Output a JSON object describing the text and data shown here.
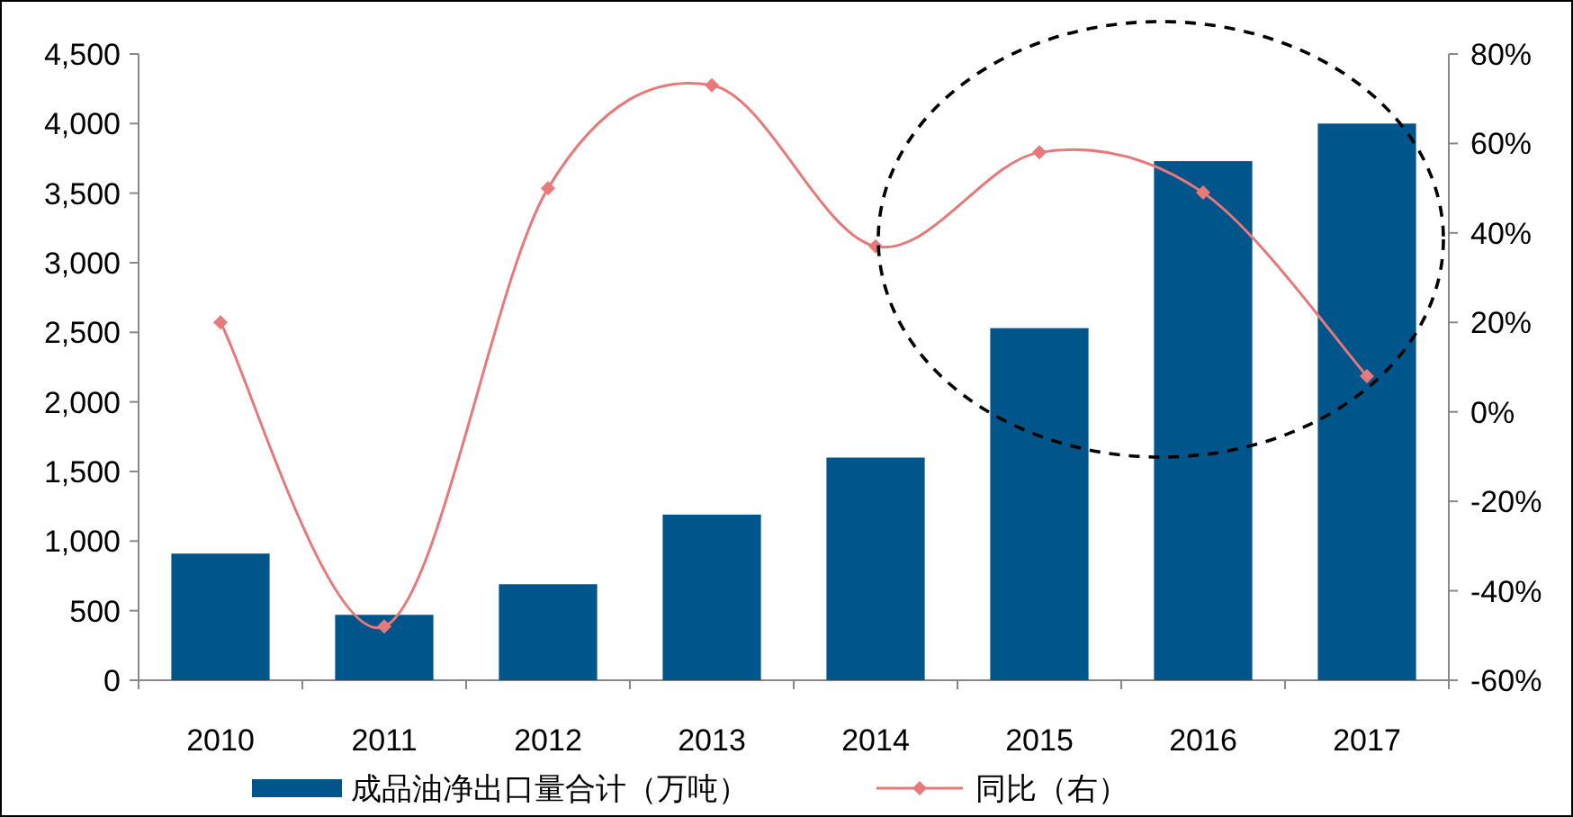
{
  "chart_data": {
    "type": "bar",
    "categories": [
      "2010",
      "2011",
      "2012",
      "2013",
      "2014",
      "2015",
      "2016",
      "2017"
    ],
    "series": [
      {
        "name": "成品油净出口量合计（万吨）",
        "color": "#00558a",
        "values": [
          910,
          470,
          690,
          1190,
          1600,
          2530,
          3730,
          4000
        ]
      },
      {
        "name": "同比（右）",
        "type": "line",
        "axis": "y2",
        "color": "#e8797a",
        "marker": "diamond",
        "values": [
          20,
          -48,
          50,
          73,
          37,
          58,
          49,
          8
        ]
      }
    ],
    "ylim": [
      0,
      4500
    ],
    "yticks": [
      0,
      500,
      {
        "value": 1000,
        "label": "1,000"
      },
      {
        "value": 1500,
        "label": "1,500"
      },
      {
        "value": 2000,
        "label": "2,000"
      },
      {
        "value": 2500,
        "label": "2,500"
      },
      {
        "value": 3000,
        "label": "3,000"
      },
      {
        "value": 3500,
        "label": "3,500"
      },
      {
        "value": 4000,
        "label": "4,000"
      },
      {
        "value": 4500,
        "label": "4,500"
      }
    ],
    "y2lim": [
      -60,
      80
    ],
    "y2ticks": [
      {
        "value": -60,
        "label": "-60%"
      },
      {
        "value": -40,
        "label": "-40%"
      },
      {
        "value": -20,
        "label": "-20%"
      },
      {
        "value": 0,
        "label": "0%"
      },
      {
        "value": 20,
        "label": "20%"
      },
      {
        "value": 40,
        "label": "40%"
      },
      {
        "value": 60,
        "label": "60%"
      },
      {
        "value": 80,
        "label": "80%"
      }
    ],
    "grid": false,
    "legend": "bottom"
  }
}
